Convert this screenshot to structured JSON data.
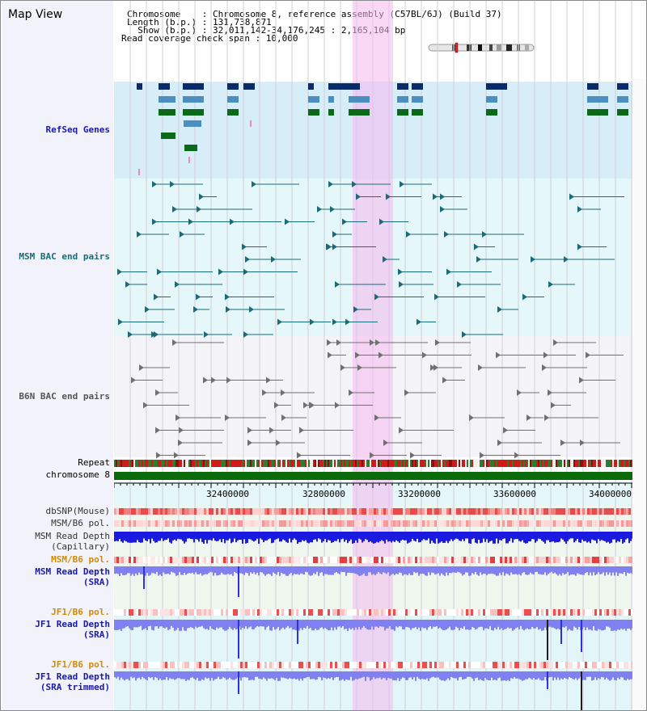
{
  "header": {
    "view_title": "Map View",
    "info": {
      "chromosome_line": "Chromosome    : Chromosome 8, reference assembly (C57BL/6J) (Build 37)",
      "length_line": "Length (b.p.) : 131,738,871",
      "show_line": "  Show (b.p.) : 32,011,142-34,176,245 : 2,165,104 bp",
      "span_line": "Read coverage check span : 10,000"
    }
  },
  "ideogram": {
    "name": "chromosome-8-ideogram"
  },
  "tracks": {
    "refseq": {
      "label": "RefSeq Genes",
      "color": "#1a1aa6"
    },
    "msm_bac": {
      "label": "MSM BAC end pairs",
      "color": "#1a6b7a"
    },
    "b6n_bac": {
      "label": "B6N BAC end pairs",
      "color": "#555555"
    },
    "repeat": {
      "label": "Repeat",
      "color": "#000000"
    },
    "chromosome": {
      "label": "chromosome 8",
      "color": "#000000"
    },
    "dbsnp": {
      "label": "dbSNP(Mouse)",
      "color": "#333333"
    },
    "msm_b6_pol_1": {
      "label": "MSM/B6 pol.",
      "color": "#333333"
    },
    "msm_depth_cap": {
      "label_1": "MSM Read Depth",
      "label_2": "(Capillary)",
      "color": "#333333"
    },
    "msm_b6_pol_2": {
      "label": "MSM/B6 pol.",
      "color": "#d48a00"
    },
    "msm_depth_sra": {
      "label_1": "MSM Read Depth",
      "label_2": "(SRA)",
      "color": "#1a1aa6"
    },
    "jf1_b6_pol_1": {
      "label": "JF1/B6 pol.",
      "color": "#d48a00"
    },
    "jf1_depth_sra": {
      "label_1": "JF1 Read Depth",
      "label_2": "(SRA)",
      "color": "#1a1aa6"
    },
    "jf1_b6_pol_2": {
      "label": "JF1/B6 pol.",
      "color": "#d48a00"
    },
    "jf1_depth_trim": {
      "label_1": "JF1 Read Depth",
      "label_2": "(SRA trimmed)",
      "color": "#1a1aa6"
    }
  },
  "axis": {
    "ticks": [
      "32400000",
      "32800000",
      "33200000",
      "33600000",
      "34000000"
    ]
  }
}
